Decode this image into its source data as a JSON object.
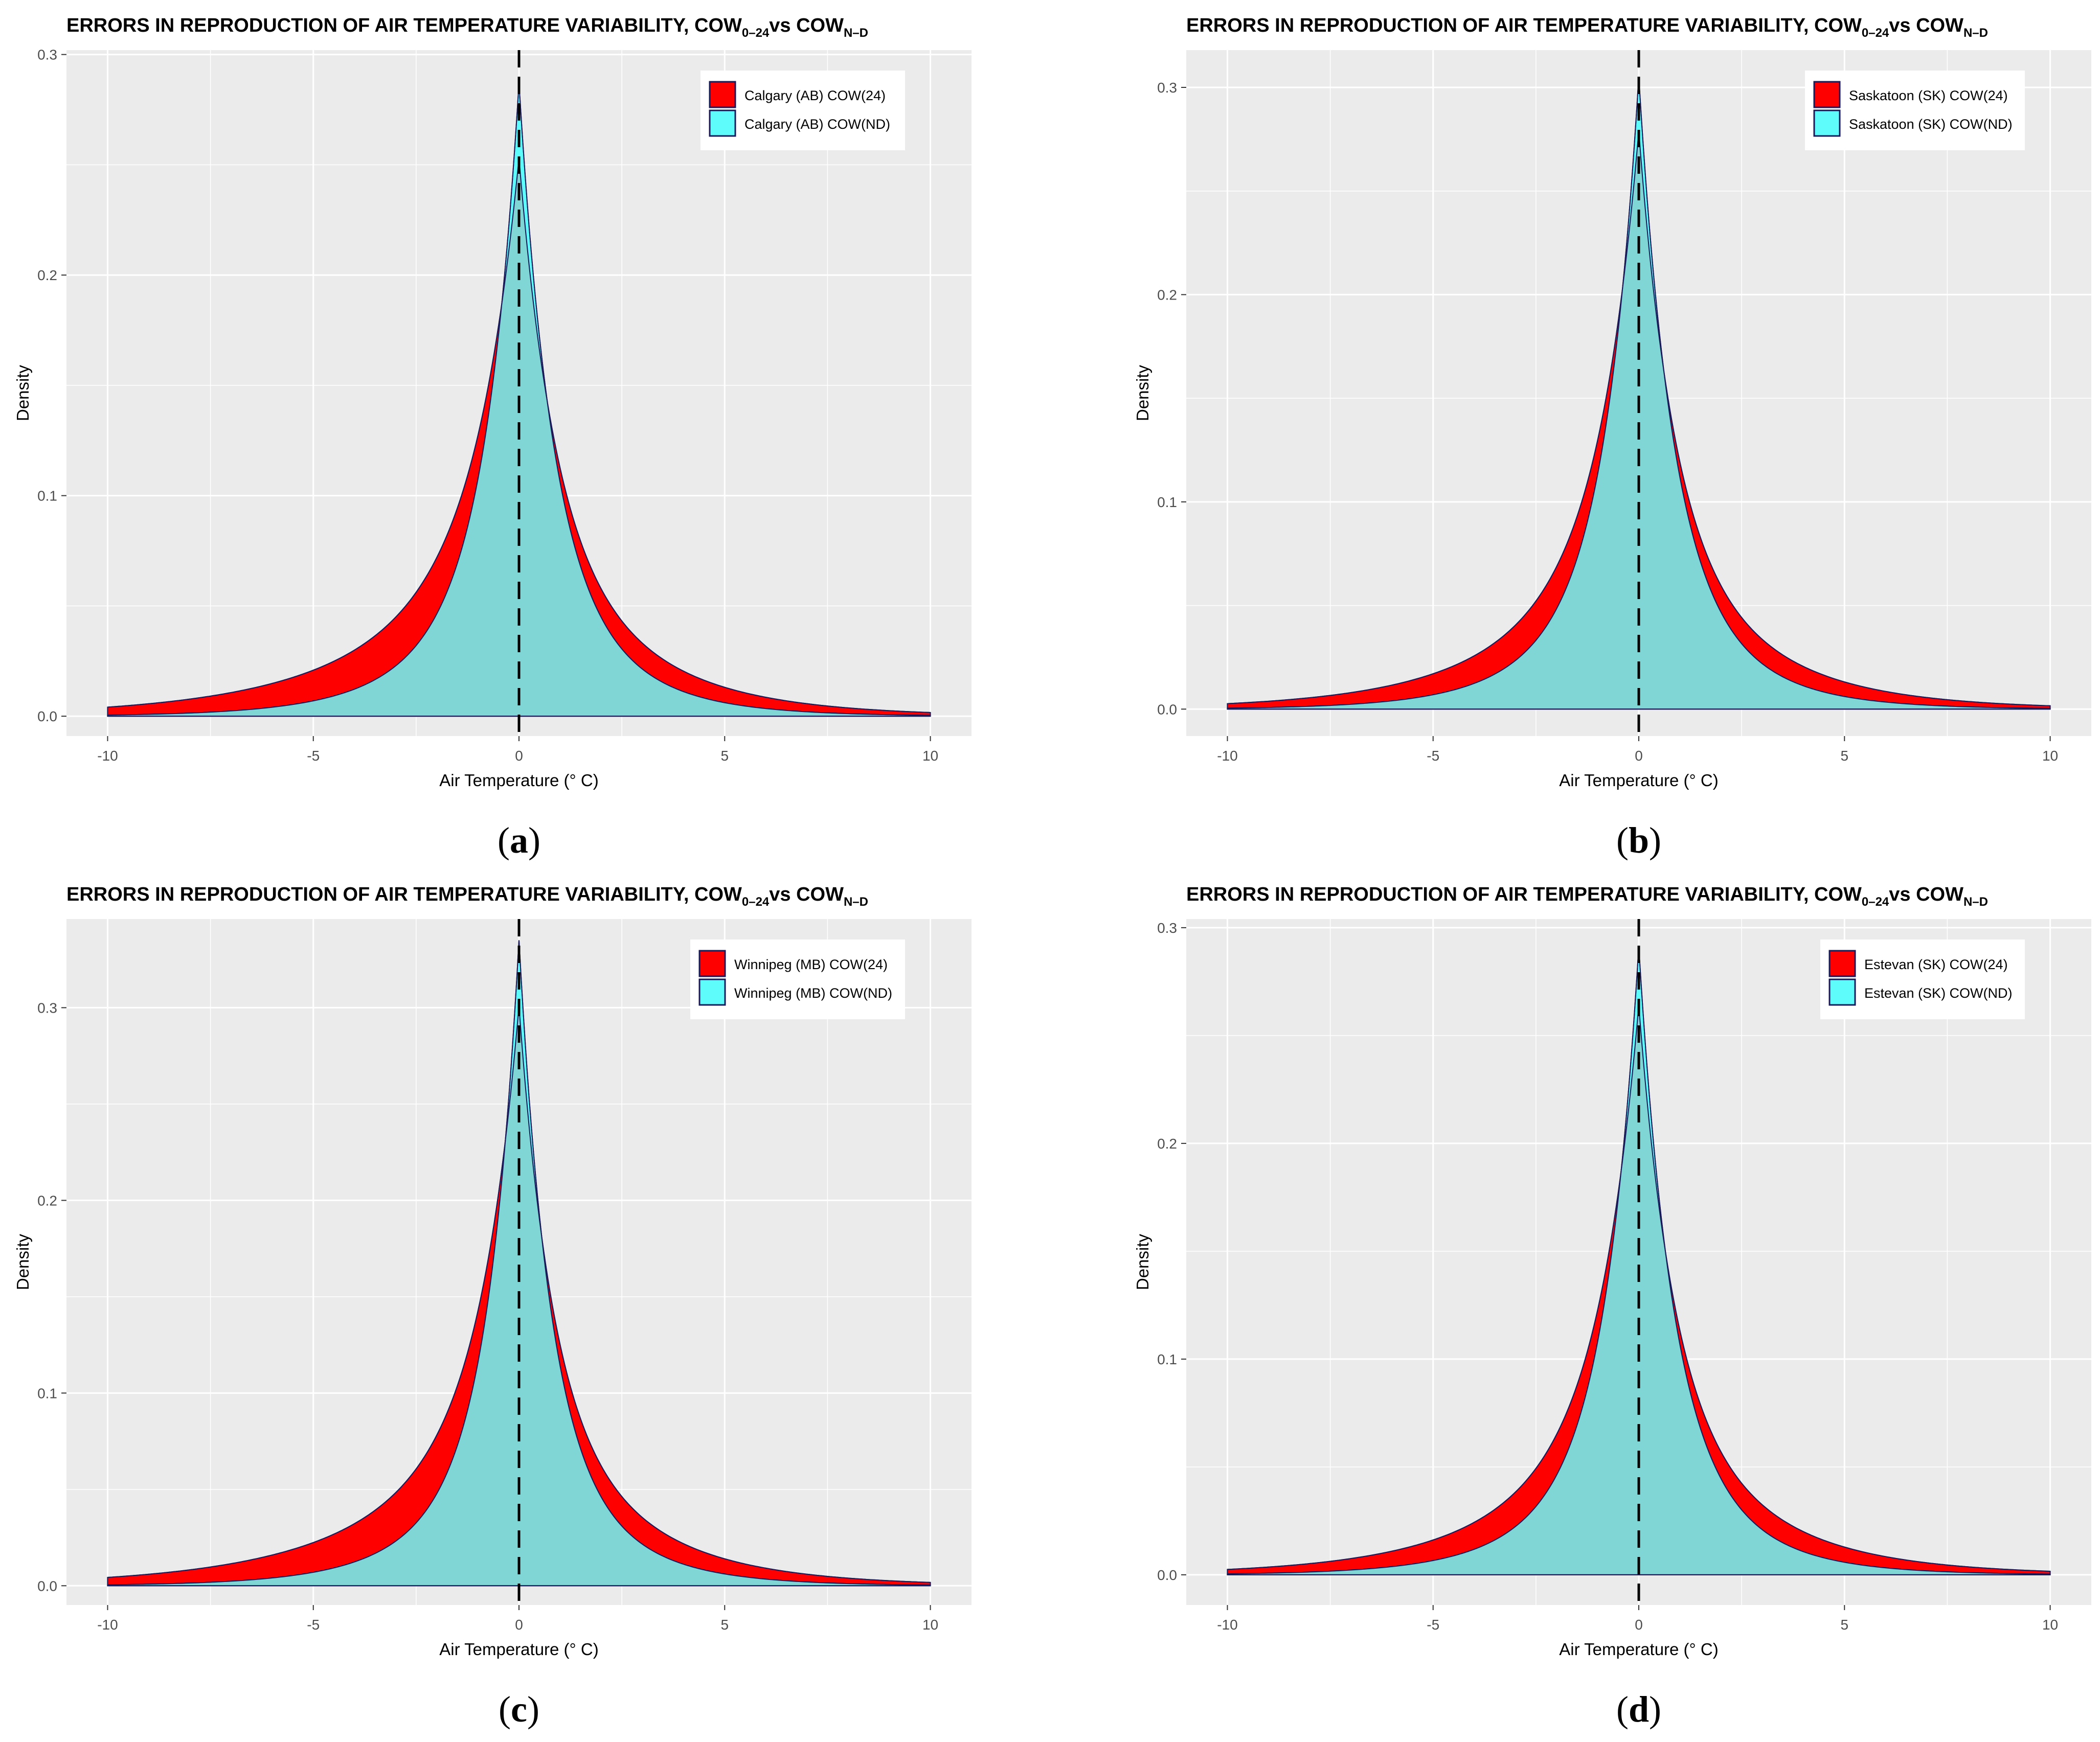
{
  "colors": {
    "panel_bg": "#ebebeb",
    "grid": "#ffffff",
    "cow24_fill": "#ff0000",
    "cownd_fill": "#5ffcfc",
    "overlap_fill": "#7fd6d4",
    "outline": "#1a1a5a"
  },
  "chart_data": [
    {
      "id": "a",
      "type": "area",
      "title_main": "ERRORS IN REPRODUCTION OF AIR TEMPERATURE VARIABILITY, COW",
      "title_sub1": "0–24",
      "title_mid": "vs COW",
      "title_sub2": "N–D",
      "xlabel": "Air Temperature (° C)",
      "ylabel": "Density",
      "xlim": [
        -11,
        11
      ],
      "ylim": [
        -0.009,
        0.302
      ],
      "xticks": [
        "-10",
        "-5",
        "0",
        "5",
        "10"
      ],
      "yticks": [
        "0.0",
        "0.1",
        "0.2",
        "0.3"
      ],
      "vline_x": 0,
      "legend_position": "top-right",
      "sublabel": "a",
      "series": [
        {
          "name": "Calgary (AB)  COW(24)",
          "kind": "cow24",
          "peak": 0.253,
          "core_weight": 0.62,
          "core_scale": 0.85,
          "tail_scale": 2.35,
          "left_skew": 1.35,
          "right_skew": 1.05
        },
        {
          "name": "Calgary (AB)  COW(ND)",
          "kind": "cownd",
          "peak": 0.287,
          "core_weight": 0.7,
          "core_scale": 0.78,
          "tail_scale": 1.95,
          "left_skew": 1.0,
          "right_skew": 0.95
        }
      ]
    },
    {
      "id": "b",
      "type": "area",
      "title_main": "ERRORS IN REPRODUCTION OF AIR TEMPERATURE VARIABILITY, COW",
      "title_sub1": "0–24",
      "title_mid": "vs COW",
      "title_sub2": "N–D",
      "xlabel": "Air Temperature (° C)",
      "ylabel": "Density",
      "xlim": [
        -11,
        11
      ],
      "ylim": [
        -0.013,
        0.318
      ],
      "xticks": [
        "-10",
        "-5",
        "0",
        "5",
        "10"
      ],
      "yticks": [
        "0.0",
        "0.1",
        "0.2",
        "0.3"
      ],
      "vline_x": 0,
      "legend_position": "top-right",
      "sublabel": "b",
      "series": [
        {
          "name": "Saskatoon (SK)  COW(24)",
          "kind": "cow24",
          "peak": 0.279,
          "core_weight": 0.64,
          "core_scale": 0.82,
          "tail_scale": 2.2,
          "left_skew": 1.25,
          "right_skew": 1.1
        },
        {
          "name": "Saskatoon (SK)  COW(ND)",
          "kind": "cownd",
          "peak": 0.305,
          "core_weight": 0.7,
          "core_scale": 0.78,
          "tail_scale": 1.9,
          "left_skew": 1.0,
          "right_skew": 0.95
        }
      ]
    },
    {
      "id": "c",
      "type": "area",
      "title_main": "ERRORS IN REPRODUCTION OF AIR TEMPERATURE VARIABILITY, COW",
      "title_sub1": "0–24",
      "title_mid": "vs COW",
      "title_sub2": "N–D",
      "xlabel": "Air Temperature (° C)",
      "ylabel": "Density",
      "xlim": [
        -11,
        11
      ],
      "ylim": [
        -0.01,
        0.346
      ],
      "xticks": [
        "-10",
        "-5",
        "0",
        "5",
        "10"
      ],
      "yticks": [
        "0.0",
        "0.1",
        "0.2",
        "0.3"
      ],
      "vline_x": 0,
      "legend_position": "top-right",
      "sublabel": "c",
      "series": [
        {
          "name": "Winnipeg (MB)  COW(24)",
          "kind": "cow24",
          "peak": 0.301,
          "core_weight": 0.64,
          "core_scale": 0.78,
          "tail_scale": 2.3,
          "left_skew": 1.35,
          "right_skew": 1.05
        },
        {
          "name": "Winnipeg (MB)  COW(ND)",
          "kind": "cownd",
          "peak": 0.335,
          "core_weight": 0.72,
          "core_scale": 0.72,
          "tail_scale": 1.9,
          "left_skew": 1.0,
          "right_skew": 0.95
        }
      ]
    },
    {
      "id": "d",
      "type": "area",
      "title_main": "ERRORS IN REPRODUCTION OF AIR TEMPERATURE VARIABILITY, COW",
      "title_sub1": "0–24",
      "title_mid": "vs COW",
      "title_sub2": "N–D",
      "xlabel": "Air Temperature (° C)",
      "ylabel": "Density",
      "xlim": [
        -11,
        11
      ],
      "ylim": [
        -0.014,
        0.304
      ],
      "xticks": [
        "-10",
        "-5",
        "0",
        "5",
        "10"
      ],
      "yticks": [
        "0.0",
        "0.1",
        "0.2",
        "0.3"
      ],
      "vline_x": 0,
      "legend_position": "top-right",
      "sublabel": "d",
      "series": [
        {
          "name": "Estevan (SK)  COW(24)",
          "kind": "cow24",
          "peak": 0.264,
          "core_weight": 0.64,
          "core_scale": 0.82,
          "tail_scale": 2.2,
          "left_skew": 1.25,
          "right_skew": 1.12
        },
        {
          "name": "Estevan (SK)  COW(ND)",
          "kind": "cownd",
          "peak": 0.291,
          "core_weight": 0.7,
          "core_scale": 0.78,
          "tail_scale": 1.9,
          "left_skew": 1.0,
          "right_skew": 0.95
        }
      ]
    }
  ]
}
